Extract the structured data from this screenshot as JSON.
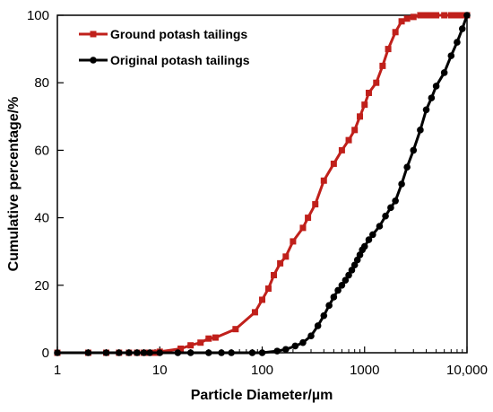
{
  "chart_data": {
    "type": "line",
    "xlabel": "Particle Diameter/µm",
    "ylabel": "Cumulative percentage/%",
    "x_scale": "log",
    "xlim": [
      1,
      10000
    ],
    "ylim": [
      0,
      100
    ],
    "x_ticks": [
      1,
      10,
      100,
      1000,
      10000
    ],
    "x_tick_labels": [
      "1",
      "10",
      "100",
      "1000",
      "10,000"
    ],
    "y_ticks": [
      0,
      20,
      40,
      60,
      80,
      100
    ],
    "y_tick_labels": [
      "0",
      "20",
      "40",
      "60",
      "80",
      "100"
    ],
    "grid": false,
    "legend_position": "top-left",
    "series": [
      {
        "name": "Ground potash tailings",
        "color": "#c0201b",
        "marker": "square",
        "x": [
          1,
          2,
          3,
          4,
          5,
          6,
          7,
          8,
          9,
          10,
          16,
          20,
          25,
          30,
          35,
          55,
          85,
          100,
          115,
          130,
          150,
          170,
          200,
          250,
          280,
          330,
          400,
          500,
          600,
          700,
          800,
          900,
          1000,
          1100,
          1300,
          1500,
          1700,
          2000,
          2300,
          2600,
          3000,
          3500,
          4000,
          4500,
          5000,
          6000,
          7000,
          8000,
          9000,
          10000
        ],
        "y": [
          0,
          0,
          0,
          0,
          0,
          0,
          0,
          0,
          0,
          0.3,
          1.2,
          2.2,
          3.0,
          4.2,
          4.5,
          7.0,
          12.0,
          15.7,
          19.0,
          23.0,
          26.5,
          28.5,
          33.0,
          37.0,
          40.0,
          44.0,
          51.0,
          56.0,
          60.0,
          63.0,
          66.0,
          70.0,
          73.5,
          77.0,
          80.0,
          85.0,
          90.0,
          95.0,
          98.2,
          99.0,
          99.5,
          100,
          100,
          100,
          100,
          100,
          100,
          100,
          100,
          100
        ]
      },
      {
        "name": "Original potash tailings",
        "color": "#000000",
        "marker": "circle",
        "x": [
          1,
          2,
          3,
          4,
          5,
          6,
          7,
          8,
          10,
          15,
          20,
          30,
          40,
          50,
          80,
          100,
          140,
          170,
          210,
          250,
          300,
          350,
          400,
          450,
          500,
          550,
          600,
          650,
          700,
          750,
          800,
          850,
          900,
          950,
          1000,
          1100,
          1200,
          1400,
          1600,
          1800,
          2000,
          2300,
          2600,
          3000,
          3500,
          4000,
          4500,
          5000,
          6000,
          7000,
          8000,
          9000,
          10000
        ],
        "y": [
          0,
          0,
          0,
          0,
          0,
          0,
          0,
          0,
          0,
          0,
          0,
          0,
          0,
          0,
          0,
          0,
          0.5,
          1.0,
          2.0,
          3.0,
          5.0,
          8.0,
          11.0,
          14.0,
          16.5,
          18.5,
          20.0,
          21.5,
          23.0,
          24.5,
          26.0,
          27.5,
          29.0,
          30.5,
          31.5,
          33.5,
          35.0,
          37.5,
          40.5,
          43.0,
          45.0,
          50.0,
          55.0,
          60.0,
          66.0,
          72.0,
          75.5,
          79.0,
          83.0,
          88.0,
          92.0,
          96.0,
          100.0
        ]
      }
    ]
  }
}
